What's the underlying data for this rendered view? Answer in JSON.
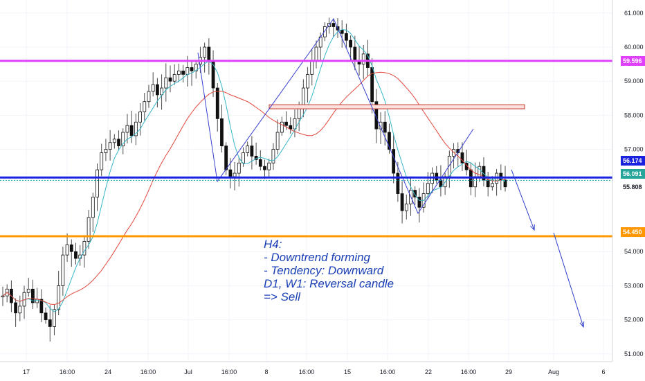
{
  "chart_data": {
    "type": "candlestick",
    "y_range": [
      50.7,
      61.3
    ],
    "y_ticks": [
      {
        "label": "61.000",
        "value": 61.0
      },
      {
        "label": "60.000",
        "value": 60.0
      },
      {
        "label": "59.000",
        "value": 59.0
      },
      {
        "label": "58.000",
        "value": 58.0
      },
      {
        "label": "57.000",
        "value": 57.0
      },
      {
        "label": "54.000",
        "value": 54.0
      },
      {
        "label": "53.000",
        "value": 53.0
      },
      {
        "label": "52.000",
        "value": 52.0
      },
      {
        "label": "51.000",
        "value": 51.0
      }
    ],
    "x_ticks": [
      "17",
      "16:00",
      "24",
      "16:00",
      "Jul",
      "16:00",
      "8",
      "16:00",
      "15",
      "16:00",
      "22",
      "16:00",
      "29",
      "Aug",
      "6"
    ],
    "price_levels": [
      {
        "value": 59.596,
        "label": "59.596",
        "color": "#e040fb"
      },
      {
        "value": 56.174,
        "label": "56.174",
        "color": "#1a22e0"
      },
      {
        "value": 56.091,
        "label": "56.091",
        "color": "#26a69a"
      },
      {
        "value": 55.808,
        "label": "55.808",
        "color": "#131722"
      },
      {
        "value": 54.45,
        "label": "54.450",
        "color": "#ff9800"
      }
    ],
    "price_series": [
      52.7,
      52.9,
      52.5,
      52.2,
      52.4,
      52.8,
      52.9,
      52.5,
      52.6,
      52.2,
      52.0,
      51.8,
      52.3,
      53.0,
      53.9,
      54.2,
      54.0,
      53.8,
      53.9,
      54.3,
      55.0,
      55.6,
      56.4,
      56.9,
      57.0,
      57.2,
      57.3,
      57.1,
      57.5,
      57.7,
      57.4,
      57.8,
      58.1,
      58.4,
      58.7,
      58.9,
      58.6,
      58.8,
      59.1,
      59.0,
      59.2,
      59.3,
      59.2,
      59.4,
      59.3,
      59.5,
      59.7,
      60.0,
      59.6,
      58.8,
      57.9,
      57.1,
      56.4,
      56.2,
      56.3,
      56.6,
      56.9,
      57.1,
      56.8,
      56.7,
      56.5,
      56.4,
      56.6,
      57.0,
      57.5,
      57.8,
      57.7,
      57.6,
      57.9,
      58.3,
      58.8,
      59.2,
      59.6,
      60.0,
      60.3,
      60.6,
      60.7,
      60.6,
      60.5,
      60.4,
      60.2,
      60.0,
      59.6,
      59.5,
      59.8,
      59.4,
      58.4,
      57.6,
      57.8,
      57.5,
      57.0,
      56.3,
      55.7,
      55.2,
      55.4,
      55.8,
      55.6,
      55.3,
      55.7,
      56.0,
      56.3,
      56.1,
      55.9,
      56.2,
      56.8,
      57.0,
      56.9,
      56.6,
      56.4,
      55.9,
      56.2,
      56.5,
      56.1,
      55.9,
      56.0,
      56.3,
      56.1,
      55.9
    ],
    "ma_fast_color": "#35b6c8",
    "ma_slow_color": "#e0473b",
    "zone": {
      "low": 58.23,
      "high": 58.31
    },
    "pattern_path": [
      [
        59.95,
        56.0
      ],
      [
        60.05,
        56.05
      ],
      [
        61.0,
        60.9
      ],
      [
        61.0,
        55.2
      ],
      [
        61.0,
        57.4
      ]
    ],
    "projection": [
      {
        "from": [
          56.2,
          55.9
        ],
        "to": [
          54.1,
          54.5
        ]
      },
      {
        "from": [
          54.45,
          54.45
        ],
        "to": [
          51.65,
          51.65
        ]
      }
    ],
    "annotation": [
      "H4:",
      "- Downtrend forming",
      "- Tendency: Downward",
      "D1, W1: Reversal candle",
      "=> Sell"
    ]
  }
}
